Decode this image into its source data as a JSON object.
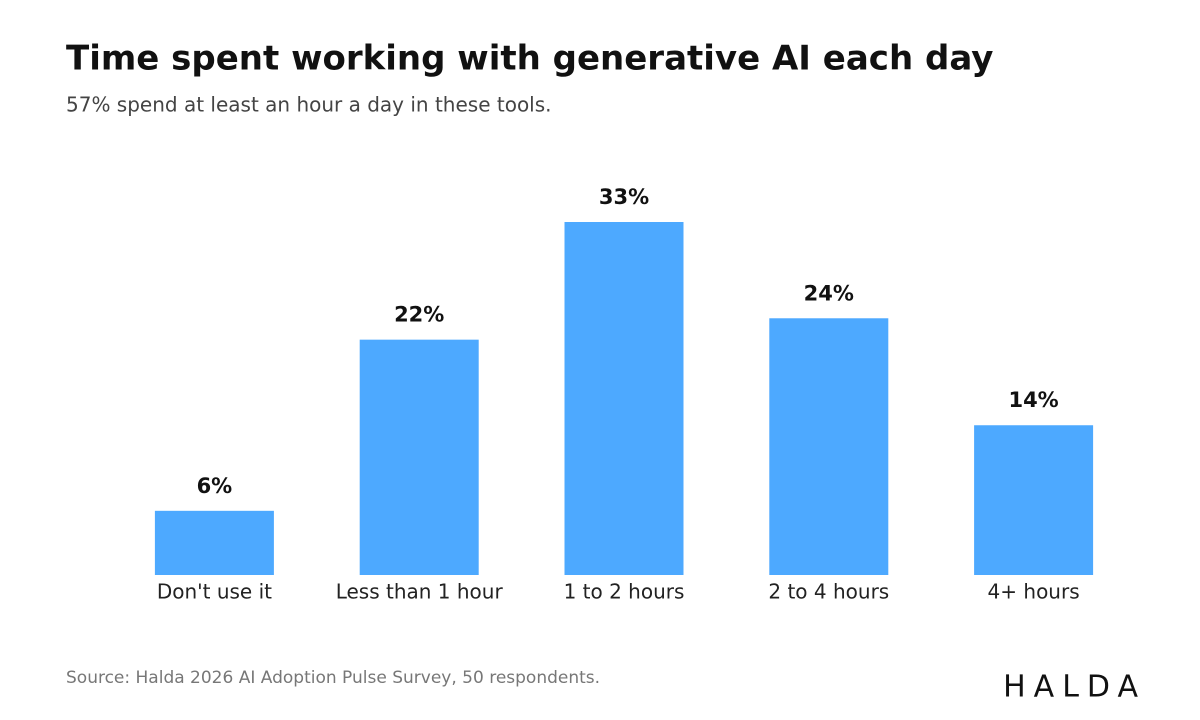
{
  "chart_data": {
    "type": "bar",
    "title": "Time spent working with generative AI each day",
    "subtitle": "57% spend at least an hour a day in these tools.",
    "categories": [
      "Don't use it",
      "Less than 1 hour",
      "1 to 2 hours",
      "2 to 4 hours",
      "4+ hours"
    ],
    "values": [
      6,
      22,
      33,
      24,
      14
    ],
    "value_labels": [
      "6%",
      "22%",
      "33%",
      "24%",
      "14%"
    ],
    "color": "#4da9ff",
    "source": "Source: Halda 2026 AI Adoption Pulse Survey, 50 respondents.",
    "logo": "HALDA"
  }
}
